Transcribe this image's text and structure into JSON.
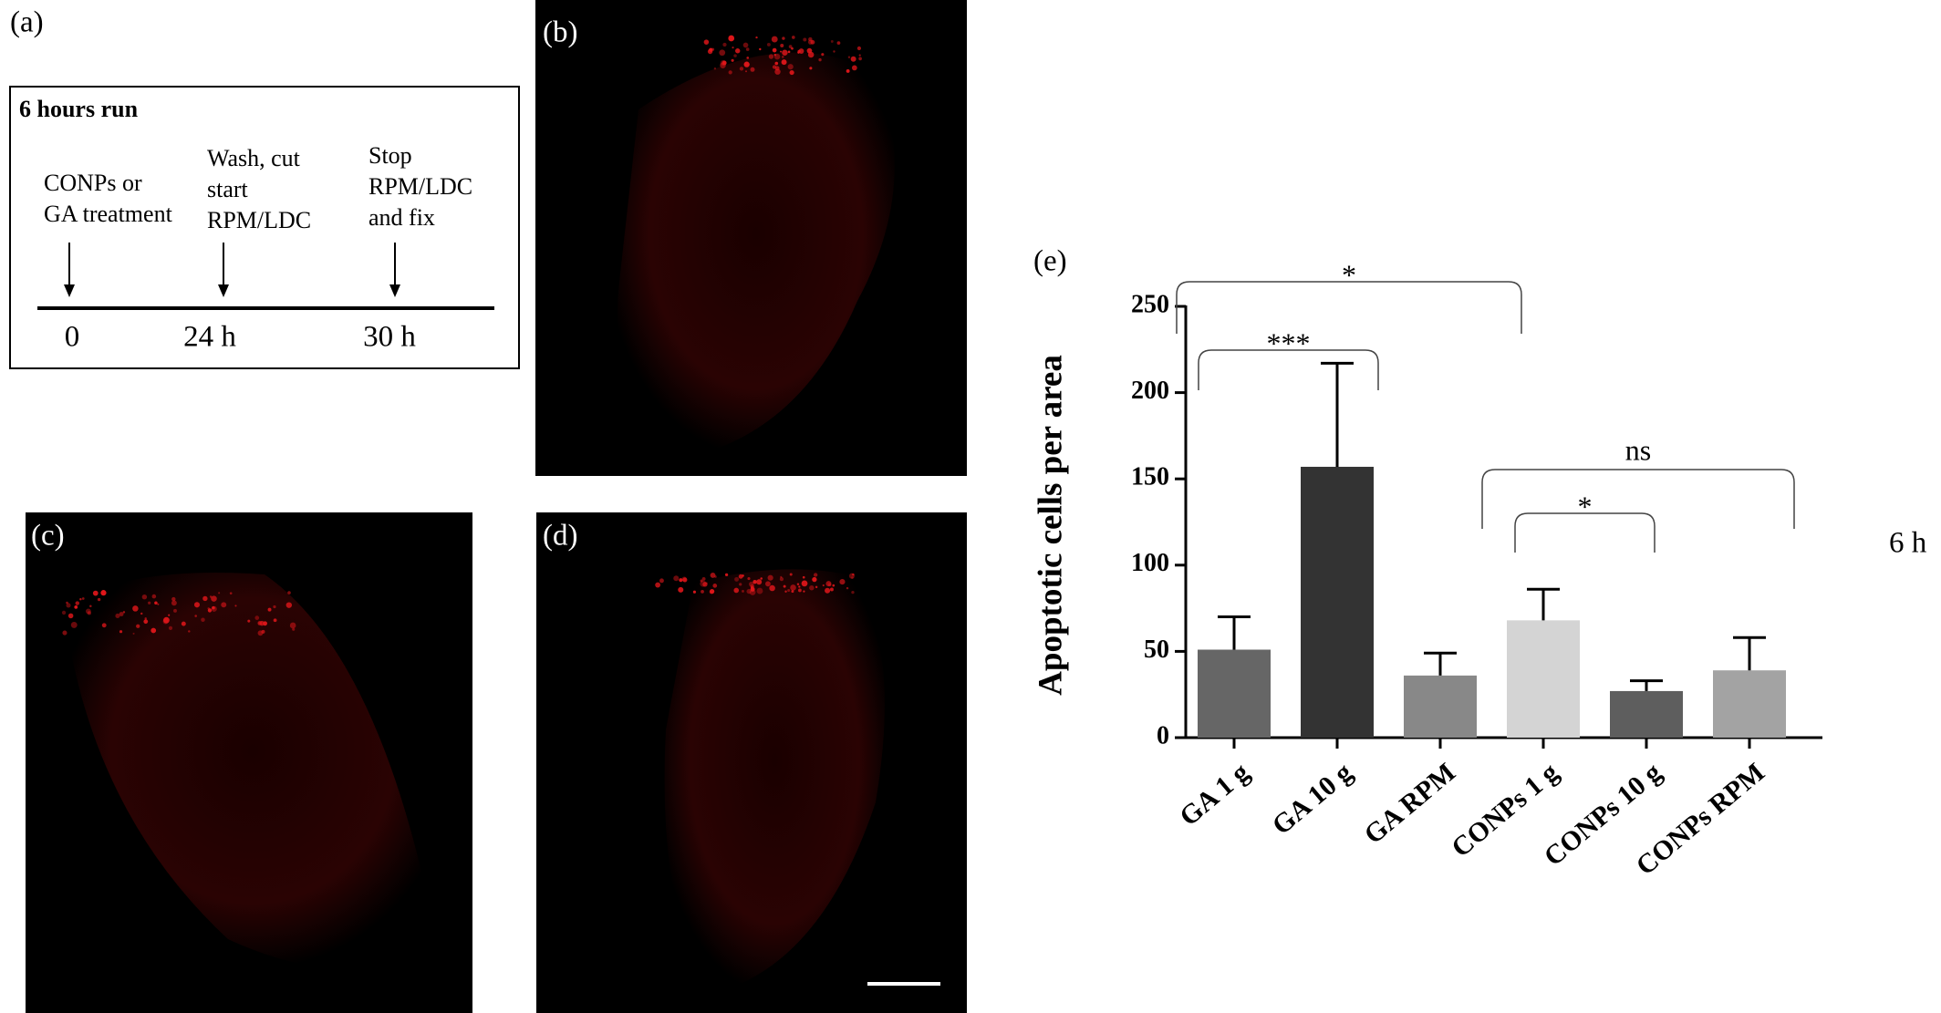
{
  "timeline": {
    "label": "(a)",
    "title": "6 hours run",
    "events": [
      {
        "text": [
          "CONPs or",
          "GA treatment"
        ],
        "time": "0"
      },
      {
        "text": [
          "Wash, cut",
          "start",
          "RPM/LDC"
        ],
        "time": "24 h"
      },
      {
        "text": [
          "Stop",
          "RPM/LDC",
          "and fix"
        ],
        "time": "30 h"
      }
    ]
  },
  "images": [
    {
      "label": "(b)"
    },
    {
      "label": "(c)"
    },
    {
      "label": "(d)"
    }
  ],
  "chart_data": {
    "type": "bar",
    "panel_label": "(e)",
    "side_label": "6 h",
    "y_label": "Apoptotic cells per area",
    "categories": [
      "GA 1 g",
      "GA 10 g",
      "GA RPM",
      "CONPs 1 g",
      "CONPs 10 g",
      "CONPs RPM"
    ],
    "values": [
      51,
      157,
      36,
      68,
      27,
      39
    ],
    "errors": [
      19,
      60,
      13,
      18,
      6,
      19
    ],
    "colors": [
      "#666666",
      "#333333",
      "#888888",
      "#d4d4d4",
      "#5e5e5e",
      "#a3a3a3"
    ],
    "ylim": [
      0,
      250
    ],
    "yticks": [
      0,
      50,
      100,
      150,
      200,
      250
    ],
    "annotations": [
      {
        "text": "*",
        "from": 0,
        "to": 2
      },
      {
        "text": "***",
        "from": 0,
        "to": 1
      },
      {
        "text": "ns",
        "from": 3,
        "to": 5
      },
      {
        "text": "*",
        "from": 3,
        "to": 4
      }
    ]
  }
}
